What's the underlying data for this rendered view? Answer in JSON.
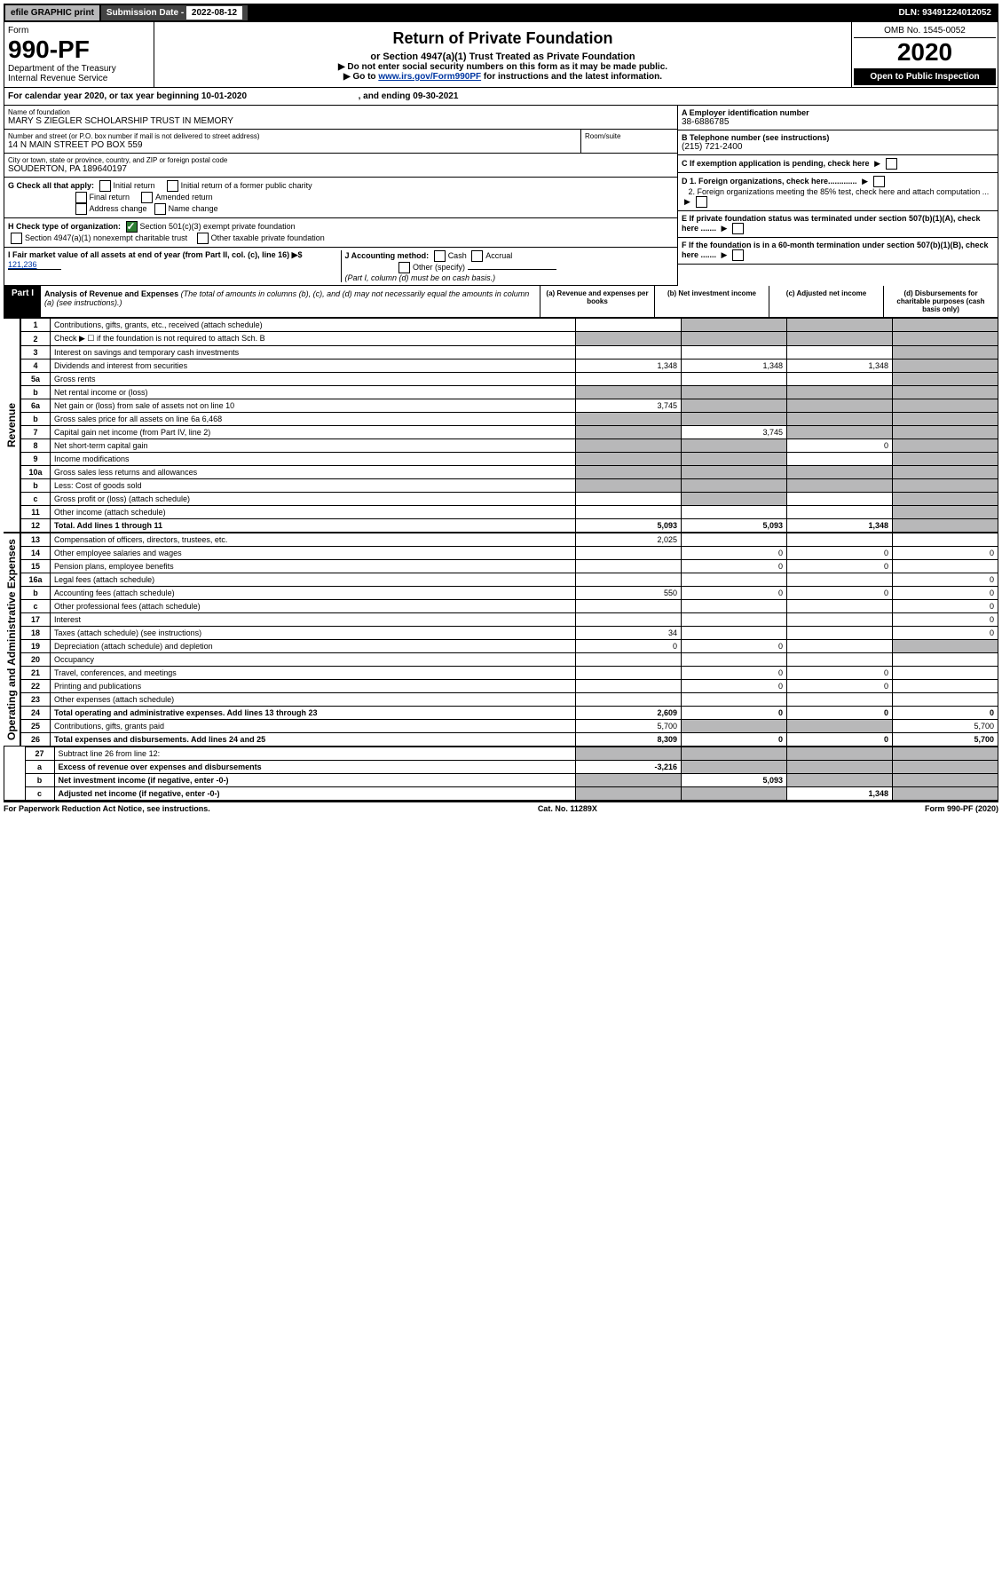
{
  "topbar": {
    "efile": "efile GRAPHIC print",
    "subdate_label": "Submission Date - ",
    "subdate": "2022-08-12",
    "dln_label": "DLN: ",
    "dln": "93491224012052"
  },
  "header": {
    "form_label": "Form",
    "form_no": "990-PF",
    "dept": "Department of the Treasury",
    "irs": "Internal Revenue Service",
    "title": "Return of Private Foundation",
    "subtitle": "or Section 4947(a)(1) Trust Treated as Private Foundation",
    "instr1": "▶ Do not enter social security numbers on this form as it may be made public.",
    "instr2_pre": "▶ Go to ",
    "instr2_link": "www.irs.gov/Form990PF",
    "instr2_post": " for instructions and the latest information.",
    "omb": "OMB No. 1545-0052",
    "year": "2020",
    "open": "Open to Public Inspection"
  },
  "calendar": {
    "text_pre": "For calendar year 2020, or tax year beginning ",
    "begin": "10-01-2020",
    "text_mid": " , and ending ",
    "end": "09-30-2021"
  },
  "entity": {
    "name_label": "Name of foundation",
    "name": "MARY S ZIEGLER SCHOLARSHIP TRUST IN MEMORY",
    "addr_label": "Number and street (or P.O. box number if mail is not delivered to street address)",
    "addr": "14 N MAIN STREET PO BOX 559",
    "room_label": "Room/suite",
    "city_label": "City or town, state or province, country, and ZIP or foreign postal code",
    "city": "SOUDERTON, PA  189640197",
    "ein_label": "A Employer identification number",
    "ein": "38-6886785",
    "tel_label": "B Telephone number (see instructions)",
    "tel": "(215) 721-2400",
    "c_label": "C If exemption application is pending, check here",
    "d1_label": "D 1. Foreign organizations, check here.............",
    "d2_label": "2. Foreign organizations meeting the 85% test, check here and attach computation ...",
    "e_label": "E If private foundation status was terminated under section 507(b)(1)(A), check here .......",
    "f_label": "F If the foundation is in a 60-month termination under section 507(b)(1)(B), check here .......",
    "g_label": "G Check all that apply:",
    "g_opts": [
      "Initial return",
      "Final return",
      "Address change",
      "Initial return of a former public charity",
      "Amended return",
      "Name change"
    ],
    "h_label": "H Check type of organization:",
    "h_opt1": "Section 501(c)(3) exempt private foundation",
    "h_opt2": "Section 4947(a)(1) nonexempt charitable trust",
    "h_opt3": "Other taxable private foundation",
    "i_label": "I Fair market value of all assets at end of year (from Part II, col. (c), line 16) ▶$",
    "i_val": "121,236",
    "j_label": "J Accounting method:",
    "j_opts": [
      "Cash",
      "Accrual",
      "Other (specify)"
    ],
    "j_note": "(Part I, column (d) must be on cash basis.)"
  },
  "part1": {
    "label": "Part I",
    "title": "Analysis of Revenue and Expenses",
    "note": "(The total of amounts in columns (b), (c), and (d) may not necessarily equal the amounts in column (a) (see instructions).)",
    "col_a": "(a) Revenue and expenses per books",
    "col_b": "(b) Net investment income",
    "col_c": "(c) Adjusted net income",
    "col_d": "(d) Disbursements for charitable purposes (cash basis only)"
  },
  "sides": {
    "revenue": "Revenue",
    "expenses": "Operating and Administrative Expenses"
  },
  "rows": [
    {
      "n": "1",
      "d": "Contributions, gifts, grants, etc., received (attach schedule)",
      "a": "",
      "b": "na",
      "c": "na",
      "dd": "na"
    },
    {
      "n": "2",
      "d": "Check ▶ ☐ if the foundation is not required to attach Sch. B",
      "a": "na",
      "b": "na",
      "c": "na",
      "dd": "na"
    },
    {
      "n": "3",
      "d": "Interest on savings and temporary cash investments",
      "a": "",
      "b": "",
      "c": "",
      "dd": "na"
    },
    {
      "n": "4",
      "d": "Dividends and interest from securities",
      "a": "1,348",
      "b": "1,348",
      "c": "1,348",
      "dd": "na"
    },
    {
      "n": "5a",
      "d": "Gross rents",
      "a": "",
      "b": "",
      "c": "",
      "dd": "na"
    },
    {
      "n": "b",
      "d": "Net rental income or (loss)",
      "a": "na",
      "b": "na",
      "c": "na",
      "dd": "na"
    },
    {
      "n": "6a",
      "d": "Net gain or (loss) from sale of assets not on line 10",
      "a": "3,745",
      "b": "na",
      "c": "na",
      "dd": "na"
    },
    {
      "n": "b",
      "d": "Gross sales price for all assets on line 6a    6,468",
      "a": "na",
      "b": "na",
      "c": "na",
      "dd": "na"
    },
    {
      "n": "7",
      "d": "Capital gain net income (from Part IV, line 2)",
      "a": "na",
      "b": "3,745",
      "c": "na",
      "dd": "na"
    },
    {
      "n": "8",
      "d": "Net short-term capital gain",
      "a": "na",
      "b": "na",
      "c": "0",
      "dd": "na"
    },
    {
      "n": "9",
      "d": "Income modifications",
      "a": "na",
      "b": "na",
      "c": "",
      "dd": "na"
    },
    {
      "n": "10a",
      "d": "Gross sales less returns and allowances",
      "a": "na",
      "b": "na",
      "c": "na",
      "dd": "na"
    },
    {
      "n": "b",
      "d": "Less: Cost of goods sold",
      "a": "na",
      "b": "na",
      "c": "na",
      "dd": "na"
    },
    {
      "n": "c",
      "d": "Gross profit or (loss) (attach schedule)",
      "a": "",
      "b": "na",
      "c": "",
      "dd": "na"
    },
    {
      "n": "11",
      "d": "Other income (attach schedule)",
      "a": "",
      "b": "",
      "c": "",
      "dd": "na"
    },
    {
      "n": "12",
      "d": "Total. Add lines 1 through 11",
      "a": "5,093",
      "b": "5,093",
      "c": "1,348",
      "dd": "na",
      "bold": true
    }
  ],
  "exp_rows": [
    {
      "n": "13",
      "d": "Compensation of officers, directors, trustees, etc.",
      "a": "2,025",
      "b": "",
      "c": "",
      "dd": ""
    },
    {
      "n": "14",
      "d": "Other employee salaries and wages",
      "a": "",
      "b": "0",
      "c": "0",
      "dd": "0"
    },
    {
      "n": "15",
      "d": "Pension plans, employee benefits",
      "a": "",
      "b": "0",
      "c": "0",
      "dd": ""
    },
    {
      "n": "16a",
      "d": "Legal fees (attach schedule)",
      "a": "",
      "b": "",
      "c": "",
      "dd": "0"
    },
    {
      "n": "b",
      "d": "Accounting fees (attach schedule)",
      "a": "550",
      "b": "0",
      "c": "0",
      "dd": "0"
    },
    {
      "n": "c",
      "d": "Other professional fees (attach schedule)",
      "a": "",
      "b": "",
      "c": "",
      "dd": "0"
    },
    {
      "n": "17",
      "d": "Interest",
      "a": "",
      "b": "",
      "c": "",
      "dd": "0"
    },
    {
      "n": "18",
      "d": "Taxes (attach schedule) (see instructions)",
      "a": "34",
      "b": "",
      "c": "",
      "dd": "0"
    },
    {
      "n": "19",
      "d": "Depreciation (attach schedule) and depletion",
      "a": "0",
      "b": "0",
      "c": "",
      "dd": "na"
    },
    {
      "n": "20",
      "d": "Occupancy",
      "a": "",
      "b": "",
      "c": "",
      "dd": ""
    },
    {
      "n": "21",
      "d": "Travel, conferences, and meetings",
      "a": "",
      "b": "0",
      "c": "0",
      "dd": ""
    },
    {
      "n": "22",
      "d": "Printing and publications",
      "a": "",
      "b": "0",
      "c": "0",
      "dd": ""
    },
    {
      "n": "23",
      "d": "Other expenses (attach schedule)",
      "a": "",
      "b": "",
      "c": "",
      "dd": ""
    },
    {
      "n": "24",
      "d": "Total operating and administrative expenses. Add lines 13 through 23",
      "a": "2,609",
      "b": "0",
      "c": "0",
      "dd": "0",
      "bold": true
    },
    {
      "n": "25",
      "d": "Contributions, gifts, grants paid",
      "a": "5,700",
      "b": "na",
      "c": "na",
      "dd": "5,700"
    },
    {
      "n": "26",
      "d": "Total expenses and disbursements. Add lines 24 and 25",
      "a": "8,309",
      "b": "0",
      "c": "0",
      "dd": "5,700",
      "bold": true
    }
  ],
  "bottom_rows": [
    {
      "n": "27",
      "d": "Subtract line 26 from line 12:",
      "a": "na",
      "b": "na",
      "c": "na",
      "dd": "na"
    },
    {
      "n": "a",
      "d": "Excess of revenue over expenses and disbursements",
      "a": "-3,216",
      "b": "na",
      "c": "na",
      "dd": "na",
      "bold": true
    },
    {
      "n": "b",
      "d": "Net investment income (if negative, enter -0-)",
      "a": "na",
      "b": "5,093",
      "c": "na",
      "dd": "na",
      "bold": true
    },
    {
      "n": "c",
      "d": "Adjusted net income (if negative, enter -0-)",
      "a": "na",
      "b": "na",
      "c": "1,348",
      "dd": "na",
      "bold": true
    }
  ],
  "footer": {
    "left": "For Paperwork Reduction Act Notice, see instructions.",
    "mid": "Cat. No. 11289X",
    "right": "Form 990-PF (2020)"
  },
  "colors": {
    "grey": "#b8b8b9",
    "black": "#000000",
    "link": "#0037a3",
    "green": "#2e7d32"
  }
}
